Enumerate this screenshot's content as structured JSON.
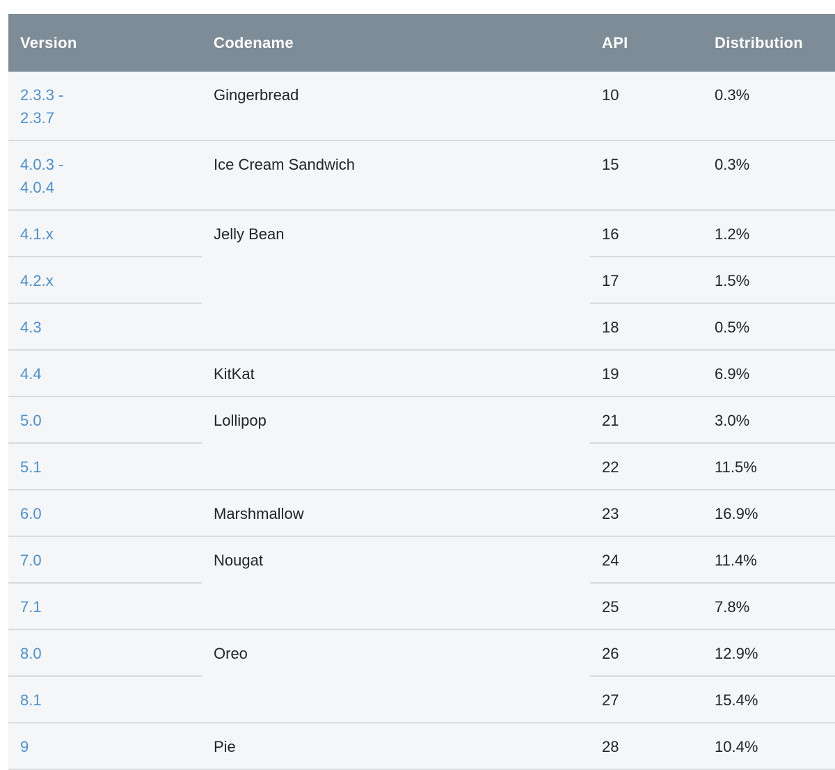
{
  "colors": {
    "header_background": "#7d8c96",
    "header_text": "#ffffff",
    "row_background": "#f5f6f7",
    "body_text": "#212528",
    "version_link": "#4a90d2",
    "separator": "#d9dadb",
    "page_background": "#ffffff"
  },
  "table": {
    "columns": [
      {
        "key": "version",
        "label": "Version"
      },
      {
        "key": "codename",
        "label": "Codename"
      },
      {
        "key": "api",
        "label": "API"
      },
      {
        "key": "distribution",
        "label": "Distribution"
      }
    ],
    "groups": [
      {
        "codename": "Gingerbread",
        "rows": [
          {
            "version": "2.3.3 -\n2.3.7",
            "api": "10",
            "distribution": "0.3%"
          }
        ]
      },
      {
        "codename": "Ice Cream Sandwich",
        "rows": [
          {
            "version": "4.0.3 -\n4.0.4",
            "api": "15",
            "distribution": "0.3%"
          }
        ]
      },
      {
        "codename": "Jelly Bean",
        "rows": [
          {
            "version": "4.1.x",
            "api": "16",
            "distribution": "1.2%"
          },
          {
            "version": "4.2.x",
            "api": "17",
            "distribution": "1.5%"
          },
          {
            "version": "4.3",
            "api": "18",
            "distribution": "0.5%"
          }
        ]
      },
      {
        "codename": "KitKat",
        "rows": [
          {
            "version": "4.4",
            "api": "19",
            "distribution": "6.9%"
          }
        ]
      },
      {
        "codename": "Lollipop",
        "rows": [
          {
            "version": "5.0",
            "api": "21",
            "distribution": "3.0%"
          },
          {
            "version": "5.1",
            "api": "22",
            "distribution": "11.5%"
          }
        ]
      },
      {
        "codename": "Marshmallow",
        "rows": [
          {
            "version": "6.0",
            "api": "23",
            "distribution": "16.9%"
          }
        ]
      },
      {
        "codename": "Nougat",
        "rows": [
          {
            "version": "7.0",
            "api": "24",
            "distribution": "11.4%"
          },
          {
            "version": "7.1",
            "api": "25",
            "distribution": "7.8%"
          }
        ]
      },
      {
        "codename": "Oreo",
        "rows": [
          {
            "version": "8.0",
            "api": "26",
            "distribution": "12.9%"
          },
          {
            "version": "8.1",
            "api": "27",
            "distribution": "15.4%"
          }
        ]
      },
      {
        "codename": "Pie",
        "rows": [
          {
            "version": "9",
            "api": "28",
            "distribution": "10.4%"
          }
        ]
      }
    ]
  },
  "chart_data": {
    "type": "table",
    "title": "",
    "columns": [
      "Version",
      "Codename",
      "API",
      "Distribution"
    ],
    "rows": [
      [
        "2.3.3 - 2.3.7",
        "Gingerbread",
        "10",
        "0.3%"
      ],
      [
        "4.0.3 - 4.0.4",
        "Ice Cream Sandwich",
        "15",
        "0.3%"
      ],
      [
        "4.1.x",
        "Jelly Bean",
        "16",
        "1.2%"
      ],
      [
        "4.2.x",
        "",
        "17",
        "1.5%"
      ],
      [
        "4.3",
        "",
        "18",
        "0.5%"
      ],
      [
        "4.4",
        "KitKat",
        "19",
        "6.9%"
      ],
      [
        "5.0",
        "Lollipop",
        "21",
        "3.0%"
      ],
      [
        "5.1",
        "",
        "22",
        "11.5%"
      ],
      [
        "6.0",
        "Marshmallow",
        "23",
        "16.9%"
      ],
      [
        "7.0",
        "Nougat",
        "24",
        "11.4%"
      ],
      [
        "7.1",
        "",
        "25",
        "7.8%"
      ],
      [
        "8.0",
        "Oreo",
        "26",
        "12.9%"
      ],
      [
        "8.1",
        "",
        "27",
        "15.4%"
      ],
      [
        "9",
        "Pie",
        "28",
        "10.4%"
      ]
    ],
    "distribution_values_percent": [
      0.3,
      0.3,
      1.2,
      1.5,
      0.5,
      6.9,
      3.0,
      11.5,
      16.9,
      11.4,
      7.8,
      12.9,
      15.4,
      10.4
    ]
  }
}
